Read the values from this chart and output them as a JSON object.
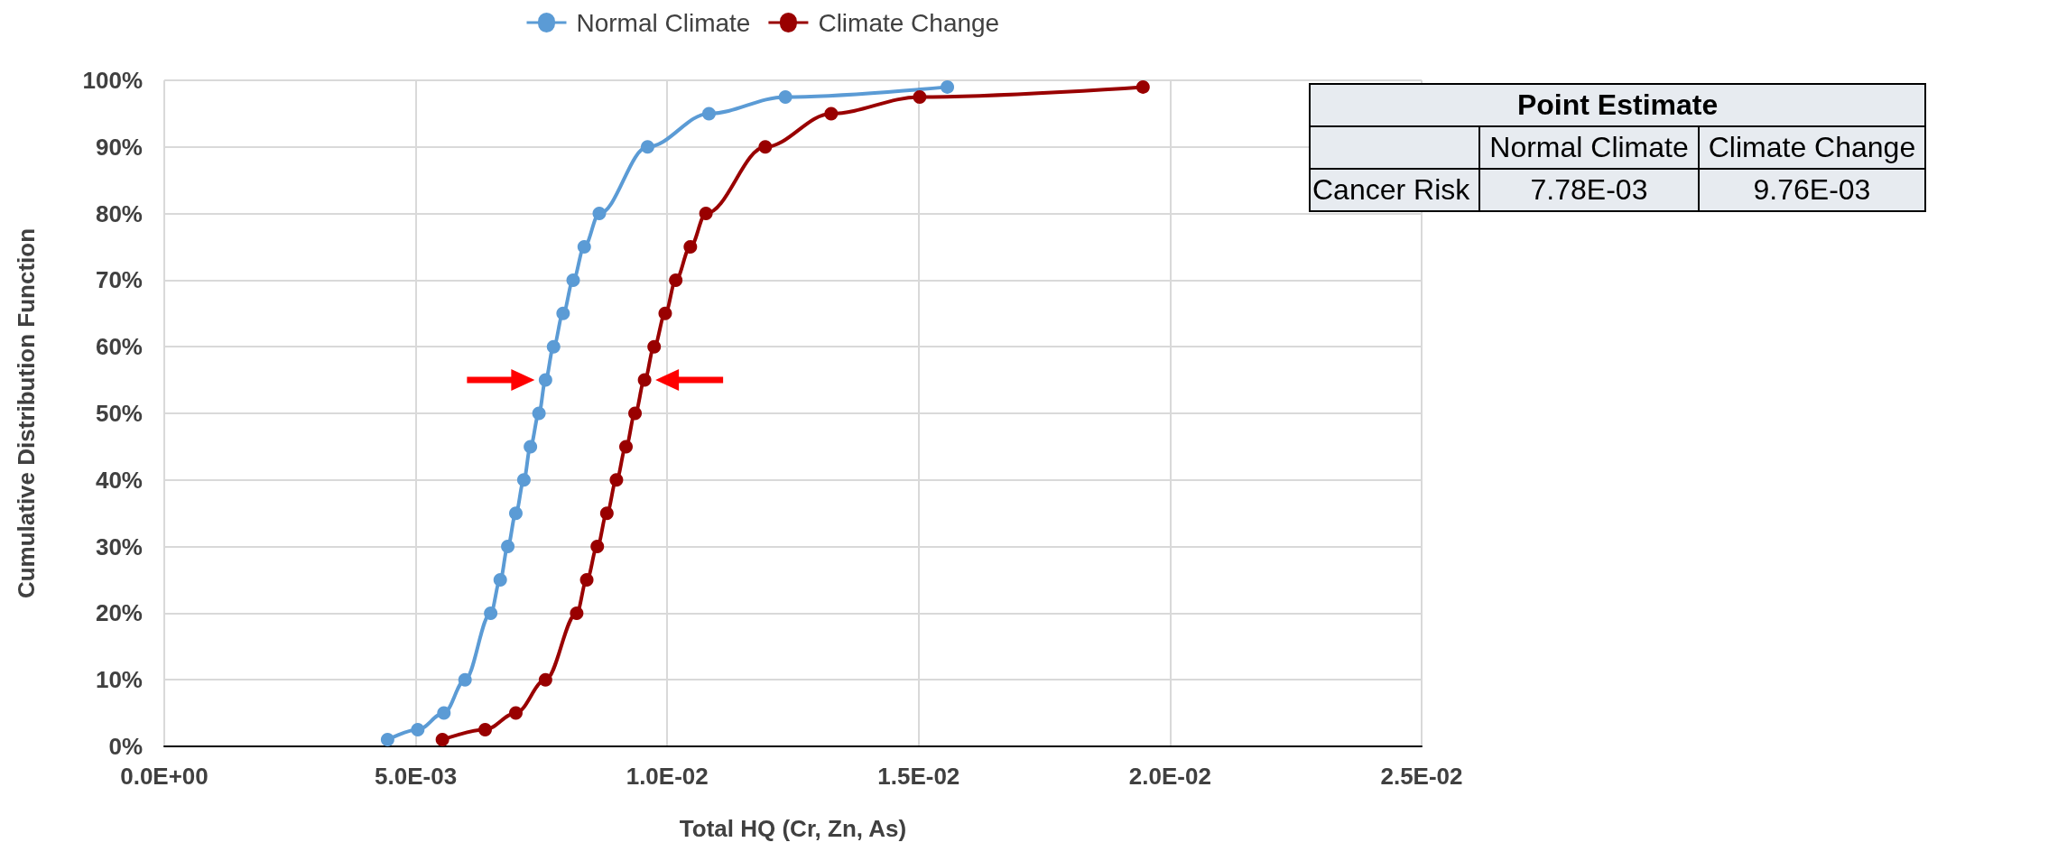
{
  "chart_data": [
    {
      "type": "line",
      "xlabel": "Total HQ (Cr, Zn, As)",
      "ylabel": "Cumulative Distribution Function",
      "series": [
        {
          "name": "Normal Climate",
          "color": "#5b9bd5",
          "x": [
            0.00444,
            0.00504,
            0.00556,
            0.00598,
            0.00649,
            0.00668,
            0.00683,
            0.00699,
            0.00715,
            0.00728,
            0.00745,
            0.00758,
            0.00774,
            0.00793,
            0.00813,
            0.00835,
            0.00865,
            0.00961,
            0.01083,
            0.01235,
            0.01557
          ],
          "values": [
            1,
            2.5,
            5,
            10,
            20,
            25,
            30,
            35,
            40,
            45,
            50,
            55,
            60,
            65,
            70,
            75,
            80,
            90,
            95,
            97.5,
            99
          ]
        },
        {
          "name": "Climate Change",
          "color": "#990000",
          "x": [
            0.00553,
            0.00638,
            0.00699,
            0.00758,
            0.0082,
            0.0084,
            0.00861,
            0.0088,
            0.00899,
            0.00918,
            0.00936,
            0.00955,
            0.00974,
            0.00996,
            0.01017,
            0.01046,
            0.01077,
            0.01195,
            0.01326,
            0.01502,
            0.01946
          ],
          "values": [
            1,
            2.5,
            5,
            10,
            20,
            25,
            30,
            35,
            40,
            45,
            50,
            55,
            60,
            65,
            70,
            75,
            80,
            90,
            95,
            97.5,
            99
          ]
        }
      ],
      "xlim": [
        0,
        0.025
      ],
      "xticks": [
        {
          "value": 0,
          "label": "0.0E+00"
        },
        {
          "value": 0.005,
          "label": "5.0E-03"
        },
        {
          "value": 0.01,
          "label": "1.0E-02"
        },
        {
          "value": 0.015,
          "label": "1.5E-02"
        },
        {
          "value": 0.02,
          "label": "2.0E-02"
        },
        {
          "value": 0.025,
          "label": "2.5E-02"
        }
      ],
      "ylim": [
        0,
        100
      ],
      "yticks": [
        {
          "value": 0,
          "label": "0%"
        },
        {
          "value": 10,
          "label": "10%"
        },
        {
          "value": 20,
          "label": "20%"
        },
        {
          "value": 30,
          "label": "30%"
        },
        {
          "value": 40,
          "label": "40%"
        },
        {
          "value": 50,
          "label": "50%"
        },
        {
          "value": 60,
          "label": "60%"
        },
        {
          "value": 70,
          "label": "70%"
        },
        {
          "value": 80,
          "label": "80%"
        },
        {
          "value": 90,
          "label": "90%"
        },
        {
          "value": 100,
          "label": "100%"
        }
      ],
      "grid": true,
      "legend": "top",
      "marker": "circle",
      "line_style": "solid"
    },
    {
      "type": "other",
      "title": "Point Estimate",
      "categories": [
        "Normal Climate",
        "Climate Change"
      ],
      "y_categories": [
        "Cancer Risk"
      ],
      "cell_labels": [
        [
          "7.78E-03",
          "9.76E-03"
        ]
      ]
    }
  ]
}
